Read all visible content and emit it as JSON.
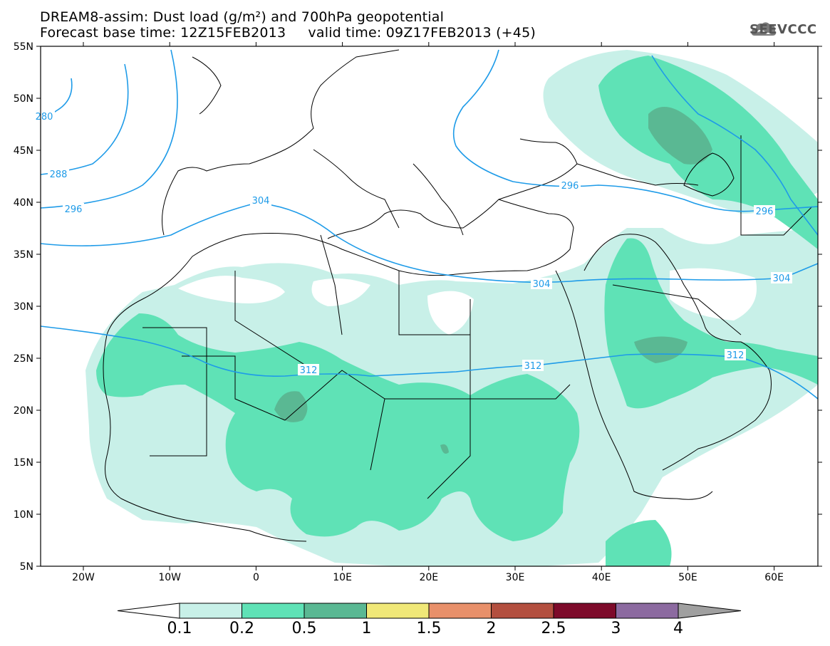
{
  "header": {
    "line1": "DREAM8-assim: Dust load (g/m²) and 700hPa geopotential",
    "line2": "Forecast base time: 12Z15FEB2013     valid time: 09Z17FEB2013 (+45)"
  },
  "logo": {
    "text": "SEEVCCC",
    "icon": "cloud-icon"
  },
  "axes": {
    "lat_labels": [
      "55N",
      "50N",
      "45N",
      "40N",
      "35N",
      "30N",
      "25N",
      "20N",
      "15N",
      "10N",
      "5N"
    ],
    "lon_labels": [
      "20W",
      "10W",
      "0",
      "10E",
      "20E",
      "30E",
      "40E",
      "50E",
      "60E"
    ]
  },
  "contour_labels": [
    {
      "text": "280"
    },
    {
      "text": "288"
    },
    {
      "text": "296"
    },
    {
      "text": "304"
    },
    {
      "text": "296"
    },
    {
      "text": "296"
    },
    {
      "text": "304"
    },
    {
      "text": "304"
    },
    {
      "text": "312"
    },
    {
      "text": "312"
    },
    {
      "text": "312"
    }
  ],
  "colorbar": {
    "labels": [
      "0.1",
      "0.2",
      "0.5",
      "1",
      "1.5",
      "2",
      "2.5",
      "3",
      "4"
    ],
    "colors": [
      "#c8f0e8",
      "#5fe2b6",
      "#5ab893",
      "#f0e878",
      "#e8906a",
      "#b34f3f",
      "#7d0a2a",
      "#8c6aa0",
      "#a0a0a0"
    ]
  },
  "colors": {
    "contour": "#1e9be8",
    "dust_low": "#c8f0e8",
    "dust_mid": "#5fe2b6",
    "dust_high": "#5ab893"
  }
}
